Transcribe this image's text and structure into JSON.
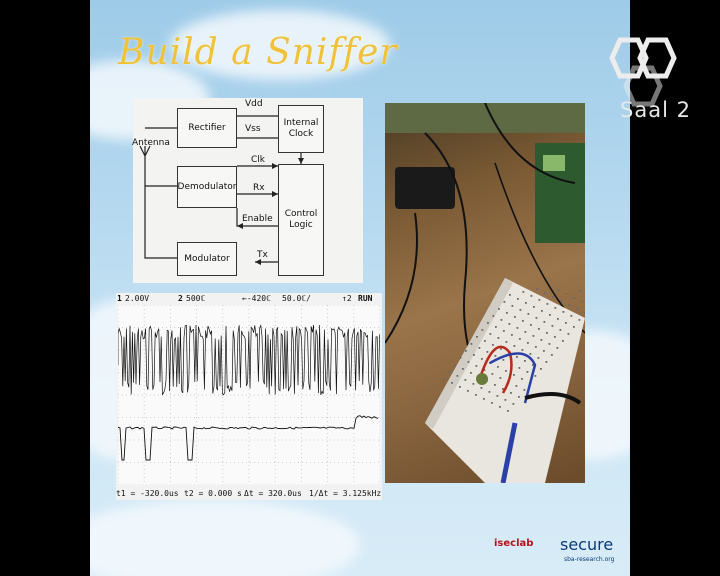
{
  "slide": {
    "title": "Build a Sniffer"
  },
  "block_diagram": {
    "antenna": "Antenna",
    "rectifier": "Rectifier",
    "vdd": "Vdd",
    "vss": "Vss",
    "internal_clock": "Internal\nClock",
    "demodulator": "Demodulator",
    "clk": "Clk",
    "rx": "Rx",
    "enable": "Enable",
    "control_logic": "Control\nLogic",
    "modulator": "Modulator",
    "tx": "Tx"
  },
  "oscilloscope": {
    "ch1": "1",
    "ch1_scale": "2.00V",
    "ch2": "2",
    "ch2_scale": "500ℂ",
    "timebase": "←-420ℂ",
    "sample": "50.0ℂ/",
    "trigger": "↑2",
    "run": "RUN",
    "t1": "t1 = -320.0us",
    "t2": "t2 = 0.000 s",
    "dt": "Δt = 320.0us",
    "freq": "1/Δt = 3.125kHz"
  },
  "overlay": {
    "room": "Saal 2"
  },
  "footer": {
    "iseclab": "iseclab",
    "secure": "secure",
    "secure_sub": "sba-research.org"
  },
  "colors": {
    "title": "#f0c23a",
    "sky": "#b8daf0"
  }
}
